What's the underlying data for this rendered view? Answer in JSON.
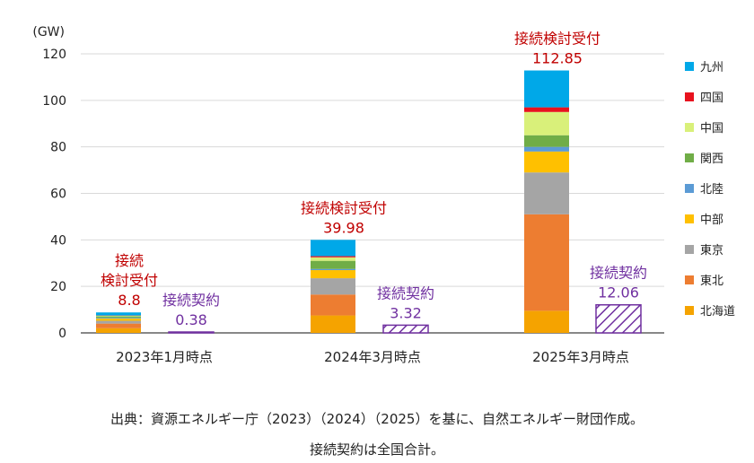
{
  "chart_data": {
    "type": "bar",
    "subtype": "stacked-bar-with-contract-bars",
    "yunit": "(GW)",
    "ylim": [
      0,
      120
    ],
    "yticks": [
      0,
      20,
      40,
      60,
      80,
      100,
      120
    ],
    "grid": true,
    "categories": [
      "2023年1月時点",
      "2024年3月時点",
      "2025年3月時点"
    ],
    "series": [
      {
        "name": "北海道",
        "color": "#f5a300",
        "values": [
          2.0,
          7.5,
          9.5
        ]
      },
      {
        "name": "東北",
        "color": "#ed7d31",
        "values": [
          2.0,
          9.0,
          41.5
        ]
      },
      {
        "name": "東京",
        "color": "#a5a5a5",
        "values": [
          1.2,
          7.0,
          18.0
        ]
      },
      {
        "name": "中部",
        "color": "#ffc000",
        "values": [
          1.0,
          3.5,
          9.0
        ]
      },
      {
        "name": "北陸",
        "color": "#5b9bd5",
        "values": [
          0.3,
          0.5,
          2.0
        ]
      },
      {
        "name": "関西",
        "color": "#70ad47",
        "values": [
          0.6,
          3.5,
          5.0
        ]
      },
      {
        "name": "中国",
        "color": "#d9f07a",
        "values": [
          0.3,
          1.5,
          10.0
        ]
      },
      {
        "name": "四国",
        "color": "#e8121e",
        "values": [
          0.1,
          0.5,
          2.0
        ]
      },
      {
        "name": "九州",
        "color": "#00a8e8",
        "values": [
          1.3,
          7.0,
          15.85
        ]
      }
    ],
    "legend_order": [
      "九州",
      "四国",
      "中国",
      "関西",
      "北陸",
      "中部",
      "東京",
      "東北",
      "北海道"
    ],
    "legend_position": "right",
    "totals": {
      "label": "接続検討受付",
      "label_short_first": [
        "接続",
        "検討受付"
      ],
      "values": [
        "8.8",
        "39.98",
        "112.85"
      ],
      "color": "#c00000"
    },
    "contracts": {
      "label": "接続契約",
      "values": [
        "0.38",
        "3.32",
        "12.06"
      ],
      "numeric": [
        0.38,
        3.32,
        12.06
      ],
      "color": "#7030a0",
      "pattern": "diagonal-hatch"
    }
  },
  "footer": {
    "source": "出典：資源エネルギー庁（2023）（2024）（2025）を基に、自然エネルギー財団作成。",
    "note": "接続契約は全国合計。"
  }
}
